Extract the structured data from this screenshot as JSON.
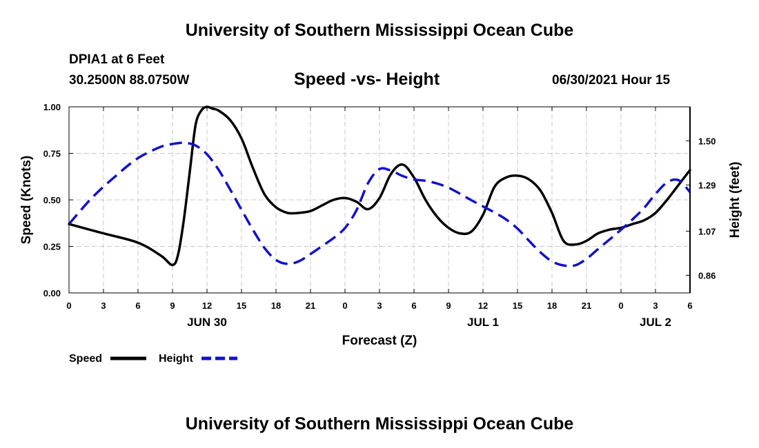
{
  "header": {
    "title": "University of Southern Mississippi Ocean Cube",
    "station": "DPIA1 at 6 Feet",
    "coords": "30.2500N  88.0750W",
    "datetime": "06/30/2021 Hour 15"
  },
  "footer": {
    "title": "University of Southern Mississippi Ocean Cube"
  },
  "colors": {
    "speed": "#000000",
    "height": "#1111cc",
    "grid": "#c8c8c8"
  },
  "chart_data": {
    "type": "line",
    "title": "Speed -vs- Height",
    "xlabel": "Forecast (Z)",
    "ylabel": "Speed (Knots)",
    "y2label": "Height (feet)",
    "xlim": [
      0,
      54
    ],
    "ylim": [
      0,
      1
    ],
    "y2lim": [
      0.776,
      1.662
    ],
    "grid": true,
    "x_ticks": [
      0,
      3,
      6,
      9,
      12,
      15,
      18,
      21,
      24,
      27,
      30,
      33,
      36,
      39,
      42,
      45,
      48,
      51,
      54
    ],
    "x_tick_labels": [
      "0",
      "3",
      "6",
      "9",
      "12",
      "15",
      "18",
      "21",
      "0",
      "3",
      "6",
      "9",
      "12",
      "15",
      "18",
      "21",
      "0",
      "3",
      "6"
    ],
    "y_ticks": [
      0,
      0.25,
      0.5,
      0.75,
      1.0
    ],
    "y_tick_labels": [
      "0.00",
      "0.25",
      "0.50",
      "0.75",
      "1.00"
    ],
    "y2_ticks": [
      0.86,
      1.07,
      1.29,
      1.5
    ],
    "y2_tick_labels": [
      "0.86",
      "1.07",
      "1.29",
      "1.50"
    ],
    "date_labels": [
      {
        "x": 12,
        "label": "JUN 30"
      },
      {
        "x": 36,
        "label": "JUL 1"
      },
      {
        "x": 51,
        "label": "JUL 2"
      }
    ],
    "legend": [
      {
        "name": "Speed",
        "style": "solid"
      },
      {
        "name": "Height",
        "style": "dashed"
      }
    ],
    "series": [
      {
        "name": "Speed",
        "axis": "left",
        "style": "solid",
        "x": [
          0,
          3,
          6,
          8,
          9,
          9.5,
          10,
          10.5,
          11,
          11.5,
          12,
          12.5,
          13,
          14,
          15,
          16,
          17,
          18,
          19,
          20,
          21,
          22,
          23,
          24,
          25,
          26,
          27,
          28,
          29,
          30,
          31,
          32,
          33,
          34,
          35,
          36,
          37,
          38,
          39,
          40,
          41,
          42,
          43,
          44,
          45,
          46,
          47,
          48,
          49,
          50,
          51,
          52,
          53,
          54
        ],
        "y": [
          0.37,
          0.32,
          0.27,
          0.2,
          0.15,
          0.21,
          0.4,
          0.65,
          0.9,
          0.98,
          1.0,
          0.99,
          0.98,
          0.93,
          0.83,
          0.67,
          0.53,
          0.46,
          0.43,
          0.43,
          0.44,
          0.47,
          0.5,
          0.51,
          0.49,
          0.45,
          0.51,
          0.64,
          0.69,
          0.62,
          0.5,
          0.41,
          0.35,
          0.32,
          0.33,
          0.42,
          0.57,
          0.62,
          0.63,
          0.61,
          0.55,
          0.43,
          0.28,
          0.26,
          0.28,
          0.32,
          0.34,
          0.35,
          0.37,
          0.39,
          0.43,
          0.5,
          0.58,
          0.66
        ]
      },
      {
        "name": "Height",
        "axis": "right",
        "style": "dashed",
        "x": [
          0,
          2,
          4,
          6,
          8,
          9,
          10,
          11,
          12,
          13,
          14,
          15,
          16,
          17,
          18,
          19,
          20,
          21,
          22,
          23,
          24,
          25,
          26,
          27,
          28,
          29,
          30,
          31,
          32,
          33,
          34,
          35,
          36,
          37,
          38,
          39,
          40,
          41,
          42,
          43,
          44,
          45,
          46,
          47,
          48,
          49,
          50,
          51,
          52,
          53,
          54
        ],
        "y": [
          1.104,
          1.229,
          1.33,
          1.418,
          1.472,
          1.485,
          1.491,
          1.478,
          1.436,
          1.363,
          1.27,
          1.172,
          1.076,
          0.99,
          0.933,
          0.914,
          0.927,
          0.961,
          0.999,
          1.037,
          1.085,
          1.17,
          1.298,
          1.366,
          1.358,
          1.333,
          1.316,
          1.31,
          1.297,
          1.277,
          1.248,
          1.217,
          1.188,
          1.159,
          1.126,
          1.082,
          1.024,
          0.969,
          0.926,
          0.907,
          0.907,
          0.938,
          0.985,
          1.03,
          1.077,
          1.126,
          1.18,
          1.247,
          1.302,
          1.313,
          1.256
        ]
      }
    ]
  }
}
